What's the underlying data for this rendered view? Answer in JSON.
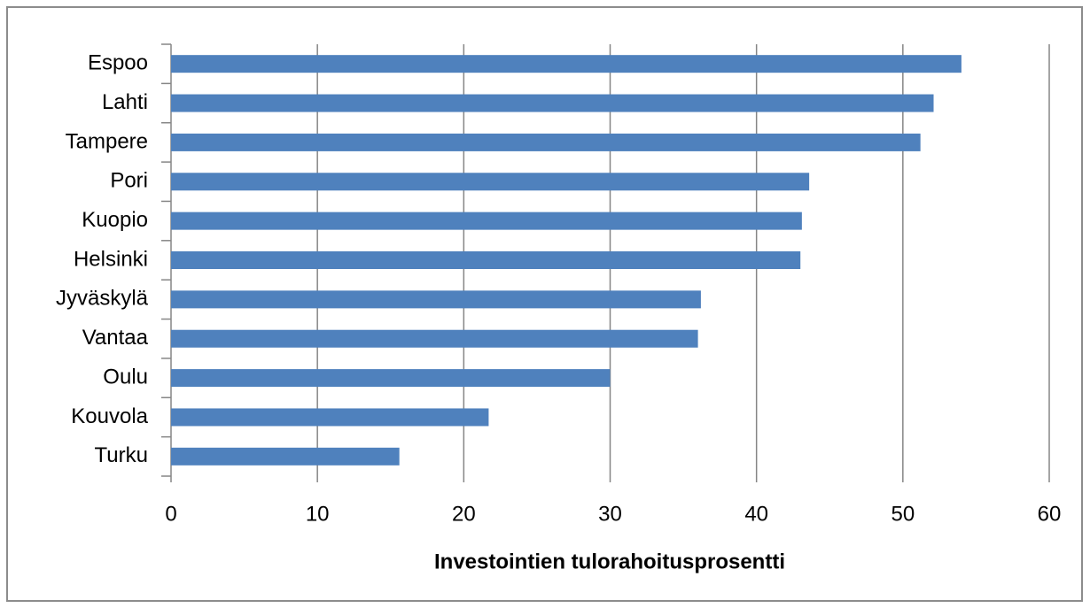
{
  "chart_data": {
    "type": "bar",
    "orientation": "horizontal",
    "x_label": "Investointien tulorahoitusprosentti",
    "categories": [
      "Espoo",
      "Lahti",
      "Tampere",
      "Pori",
      "Kuopio",
      "Helsinki",
      "Jyväskylä",
      "Vantaa",
      "Oulu",
      "Kouvola",
      "Turku"
    ],
    "values": [
      54.0,
      52.1,
      51.2,
      43.6,
      43.1,
      43.0,
      36.2,
      36.0,
      30.0,
      21.7,
      15.6
    ],
    "color": "#4f81bd",
    "xlim": [
      0,
      60
    ],
    "xticks": [
      0,
      10,
      20,
      30,
      40,
      50,
      60
    ],
    "grid": true
  }
}
